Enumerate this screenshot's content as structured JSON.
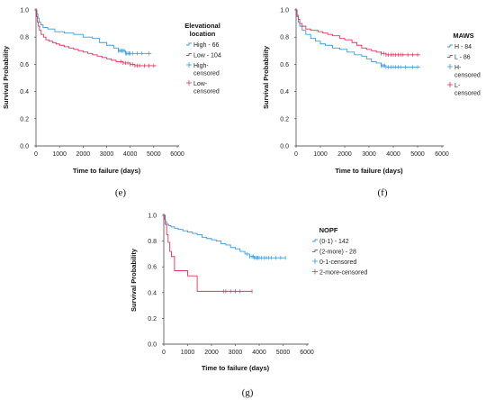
{
  "chart_data": [
    {
      "panel": "(e)",
      "type": "line",
      "subtype": "kaplan-meier",
      "xlabel": "Time to failure (days)",
      "ylabel": "Survival Probability",
      "xlim": [
        0,
        6000
      ],
      "ylim": [
        0,
        1
      ],
      "xticks": [
        "0",
        "1000",
        "2000",
        "3000",
        "4000",
        "5000",
        "6000"
      ],
      "yticks": [
        "0.0",
        "0.2",
        "0.4",
        "0.6",
        "0.8",
        "1.0"
      ],
      "legend": {
        "title": [
          "Elevational",
          "location"
        ],
        "placement": "right",
        "entries": [
          {
            "label": [
              "High - 66"
            ],
            "kind": "line",
            "color": "#3a9ad9"
          },
          {
            "label": [
              "Low - 104"
            ],
            "kind": "line",
            "color": "#e8305a"
          },
          {
            "label": [
              "High-",
              "censored"
            ],
            "kind": "censor",
            "color": "#3a9ad9"
          },
          {
            "label": [
              "Low-",
              "censored"
            ],
            "kind": "censor",
            "color": "#e8305a"
          }
        ]
      },
      "series": [
        {
          "name": "High - 66",
          "color": "#3a9ad9",
          "steps": [
            [
              0,
              1.0
            ],
            [
              40,
              0.97
            ],
            [
              80,
              0.94
            ],
            [
              130,
              0.91
            ],
            [
              200,
              0.89
            ],
            [
              300,
              0.87
            ],
            [
              500,
              0.86
            ],
            [
              800,
              0.84
            ],
            [
              1200,
              0.83
            ],
            [
              1600,
              0.82
            ],
            [
              2000,
              0.8
            ],
            [
              2400,
              0.79
            ],
            [
              2700,
              0.76
            ],
            [
              3000,
              0.74
            ],
            [
              3300,
              0.72
            ],
            [
              3500,
              0.7
            ],
            [
              3800,
              0.68
            ],
            [
              4900,
              0.68
            ]
          ],
          "censored": [
            3500,
            3550,
            3600,
            3650,
            3700,
            3750,
            3800,
            3850,
            3900,
            3950,
            4000,
            4100,
            4300,
            4500,
            4800
          ]
        },
        {
          "name": "Low - 104",
          "color": "#e8305a",
          "steps": [
            [
              0,
              1.0
            ],
            [
              30,
              0.95
            ],
            [
              60,
              0.91
            ],
            [
              100,
              0.88
            ],
            [
              150,
              0.85
            ],
            [
              220,
              0.82
            ],
            [
              320,
              0.8
            ],
            [
              420,
              0.78
            ],
            [
              550,
              0.77
            ],
            [
              700,
              0.76
            ],
            [
              850,
              0.75
            ],
            [
              1000,
              0.74
            ],
            [
              1200,
              0.73
            ],
            [
              1400,
              0.72
            ],
            [
              1600,
              0.71
            ],
            [
              1800,
              0.7
            ],
            [
              2000,
              0.69
            ],
            [
              2200,
              0.68
            ],
            [
              2400,
              0.67
            ],
            [
              2600,
              0.66
            ],
            [
              2800,
              0.65
            ],
            [
              3000,
              0.64
            ],
            [
              3200,
              0.63
            ],
            [
              3400,
              0.62
            ],
            [
              3700,
              0.61
            ],
            [
              4000,
              0.6
            ],
            [
              4200,
              0.59
            ],
            [
              5100,
              0.59
            ]
          ],
          "censored": [
            3600,
            3700,
            3800,
            3900,
            4000,
            4100,
            4200,
            4300,
            4400,
            4600,
            4800,
            5000
          ]
        }
      ]
    },
    {
      "panel": "(f)",
      "type": "line",
      "subtype": "kaplan-meier",
      "xlabel": "Time to failure (days)",
      "ylabel": "Survival Probability",
      "xlim": [
        0,
        6000
      ],
      "ylim": [
        0,
        1
      ],
      "xticks": [
        "0",
        "1000",
        "2000",
        "3000",
        "4000",
        "5000",
        "6000"
      ],
      "yticks": [
        "0.0",
        "0.2",
        "0.4",
        "0.6",
        "0.8",
        "1.0"
      ],
      "legend": {
        "title": [
          "MAWS"
        ],
        "placement": "right",
        "entries": [
          {
            "label": [
              "H - 84"
            ],
            "kind": "line",
            "color": "#3a9ad9"
          },
          {
            "label": [
              "L - 86"
            ],
            "kind": "line",
            "color": "#e8305a"
          },
          {
            "label": [
              "H-",
              "censored"
            ],
            "kind": "censor",
            "color": "#3a9ad9"
          },
          {
            "label": [
              "L-",
              "censored"
            ],
            "kind": "censor",
            "color": "#e8305a"
          }
        ]
      },
      "series": [
        {
          "name": "H - 84",
          "color": "#3a9ad9",
          "steps": [
            [
              0,
              1.0
            ],
            [
              40,
              0.95
            ],
            [
              90,
              0.91
            ],
            [
              150,
              0.88
            ],
            [
              250,
              0.85
            ],
            [
              400,
              0.82
            ],
            [
              600,
              0.79
            ],
            [
              800,
              0.77
            ],
            [
              1000,
              0.75
            ],
            [
              1200,
              0.74
            ],
            [
              1500,
              0.72
            ],
            [
              1800,
              0.71
            ],
            [
              2100,
              0.69
            ],
            [
              2400,
              0.67
            ],
            [
              2700,
              0.66
            ],
            [
              2900,
              0.64
            ],
            [
              3100,
              0.62
            ],
            [
              3300,
              0.61
            ],
            [
              3500,
              0.59
            ],
            [
              3700,
              0.58
            ],
            [
              5100,
              0.58
            ]
          ],
          "censored": [
            3500,
            3550,
            3600,
            3650,
            3700,
            3800,
            3900,
            4000,
            4100,
            4200,
            4300,
            4500,
            4800,
            5000
          ]
        },
        {
          "name": "L - 86",
          "color": "#e8305a",
          "steps": [
            [
              0,
              1.0
            ],
            [
              40,
              0.96
            ],
            [
              90,
              0.93
            ],
            [
              150,
              0.9
            ],
            [
              250,
              0.88
            ],
            [
              400,
              0.86
            ],
            [
              600,
              0.85
            ],
            [
              900,
              0.84
            ],
            [
              1100,
              0.83
            ],
            [
              1300,
              0.82
            ],
            [
              1500,
              0.81
            ],
            [
              1800,
              0.79
            ],
            [
              2000,
              0.78
            ],
            [
              2300,
              0.76
            ],
            [
              2500,
              0.74
            ],
            [
              2700,
              0.72
            ],
            [
              2900,
              0.71
            ],
            [
              3100,
              0.7
            ],
            [
              3300,
              0.69
            ],
            [
              3500,
              0.68
            ],
            [
              3700,
              0.67
            ],
            [
              5100,
              0.67
            ]
          ],
          "censored": [
            3500,
            3600,
            3700,
            3800,
            3900,
            4000,
            4100,
            4200,
            4300,
            4400,
            4600,
            4800,
            5000
          ]
        }
      ]
    },
    {
      "panel": "(g)",
      "type": "line",
      "subtype": "kaplan-meier",
      "xlabel": "Time to failure (days)",
      "ylabel": "Survival Probability",
      "xlim": [
        0,
        6000
      ],
      "ylim": [
        0,
        1
      ],
      "xticks": [
        "0",
        "1000",
        "2000",
        "3000",
        "4000",
        "5000",
        "6000"
      ],
      "yticks": [
        "0.0",
        "0.2",
        "0.4",
        "0.6",
        "0.8",
        "1.0"
      ],
      "legend": {
        "title": [
          "NOPF"
        ],
        "placement": "right",
        "entries": [
          {
            "label": [
              "(0-1) - 142"
            ],
            "kind": "line",
            "color": "#3a9ad9"
          },
          {
            "label": [
              "(2-more) - 28"
            ],
            "kind": "line",
            "color": "#e8305a"
          },
          {
            "label": [
              "0-1-censored"
            ],
            "kind": "censor",
            "color": "#3a9ad9"
          },
          {
            "label": [
              "2-more-censored"
            ],
            "kind": "censor",
            "color": "#e8305a"
          }
        ]
      },
      "series": [
        {
          "name": "(0-1) - 142",
          "color": "#3a9ad9",
          "steps": [
            [
              0,
              1.0
            ],
            [
              30,
              0.97
            ],
            [
              70,
              0.95
            ],
            [
              120,
              0.93
            ],
            [
              200,
              0.92
            ],
            [
              300,
              0.91
            ],
            [
              450,
              0.9
            ],
            [
              600,
              0.89
            ],
            [
              800,
              0.88
            ],
            [
              1000,
              0.87
            ],
            [
              1200,
              0.86
            ],
            [
              1400,
              0.85
            ],
            [
              1600,
              0.83
            ],
            [
              1800,
              0.82
            ],
            [
              2000,
              0.81
            ],
            [
              2200,
              0.8
            ],
            [
              2400,
              0.78
            ],
            [
              2600,
              0.77
            ],
            [
              2800,
              0.75
            ],
            [
              3000,
              0.74
            ],
            [
              3200,
              0.72
            ],
            [
              3400,
              0.7
            ],
            [
              3600,
              0.68
            ],
            [
              3800,
              0.67
            ],
            [
              5100,
              0.67
            ]
          ],
          "censored": [
            3500,
            3600,
            3700,
            3750,
            3800,
            3850,
            3900,
            3950,
            4000,
            4100,
            4200,
            4300,
            4400,
            4500,
            4700,
            4900,
            5100
          ]
        },
        {
          "name": "(2-more) - 28",
          "color": "#e8305a",
          "steps": [
            [
              0,
              1.0
            ],
            [
              60,
              0.93
            ],
            [
              120,
              0.85
            ],
            [
              180,
              0.79
            ],
            [
              250,
              0.72
            ],
            [
              320,
              0.68
            ],
            [
              450,
              0.57
            ],
            [
              1000,
              0.53
            ],
            [
              1400,
              0.41
            ],
            [
              3700,
              0.41
            ]
          ],
          "censored": [
            2500,
            2600,
            2800,
            3000,
            3200,
            3700
          ]
        }
      ]
    }
  ],
  "captions": [
    "(e)",
    "(f)",
    "(g)"
  ]
}
